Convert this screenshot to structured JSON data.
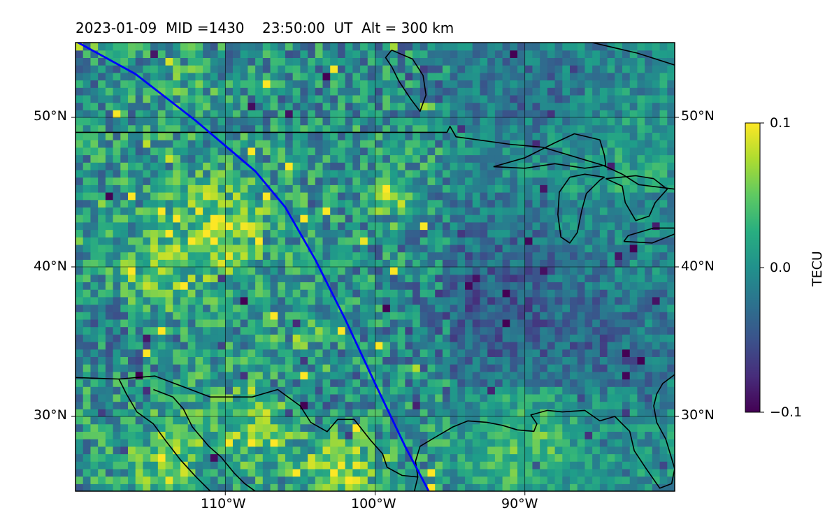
{
  "title": {
    "date": "2023-01-09",
    "mid": "MID =1430",
    "time": "23:50:00",
    "time_zone": "UT",
    "altitude": "Alt = 300 km"
  },
  "map": {
    "lon_range": [
      -120,
      -80
    ],
    "lat_range": [
      25,
      55
    ],
    "gridlines": true,
    "lat_ticks": [
      {
        "value": 50,
        "label": "50°N"
      },
      {
        "value": 40,
        "label": "40°N"
      },
      {
        "value": 30,
        "label": "30°N"
      }
    ],
    "lon_ticks": [
      {
        "value": -110,
        "label": "110°W"
      },
      {
        "value": -100,
        "label": "100°W"
      },
      {
        "value": -90,
        "label": "90°W"
      }
    ],
    "field": {
      "name": "TEC perturbation",
      "unit": "TECU",
      "range": [
        -0.1,
        0.1
      ],
      "colormap": "viridis",
      "grid_resolution_deg": 0.5,
      "notable_positive_areas": [
        "Rocky Mountain region 105-118W, 38-47N",
        "northern Mexico 100-115W, 25-35N",
        "Gulf coast Louisiana/Texas 85-96W, 28-30N",
        "Dakotas 98-100W, 44-46N"
      ]
    },
    "track": {
      "color": "#0000ff",
      "points": [
        [
          -120,
          55.1
        ],
        [
          -116,
          52.9
        ],
        [
          -112,
          49.8
        ],
        [
          -108,
          46.4
        ],
        [
          -106,
          44.0
        ],
        [
          -104,
          40.5
        ],
        [
          -102,
          36.5
        ],
        [
          -100,
          32.2
        ],
        [
          -98,
          28.0
        ],
        [
          -96,
          24.2
        ]
      ]
    },
    "colors": {
      "coastline": "#000000",
      "frame": "#000000",
      "grid": "#000000"
    }
  },
  "colorbar": {
    "label": "TECU",
    "min": -0.1,
    "max": 0.1,
    "tick_labels": [
      "0.1",
      "0.0",
      "−0.1"
    ],
    "colormap": "viridis"
  }
}
